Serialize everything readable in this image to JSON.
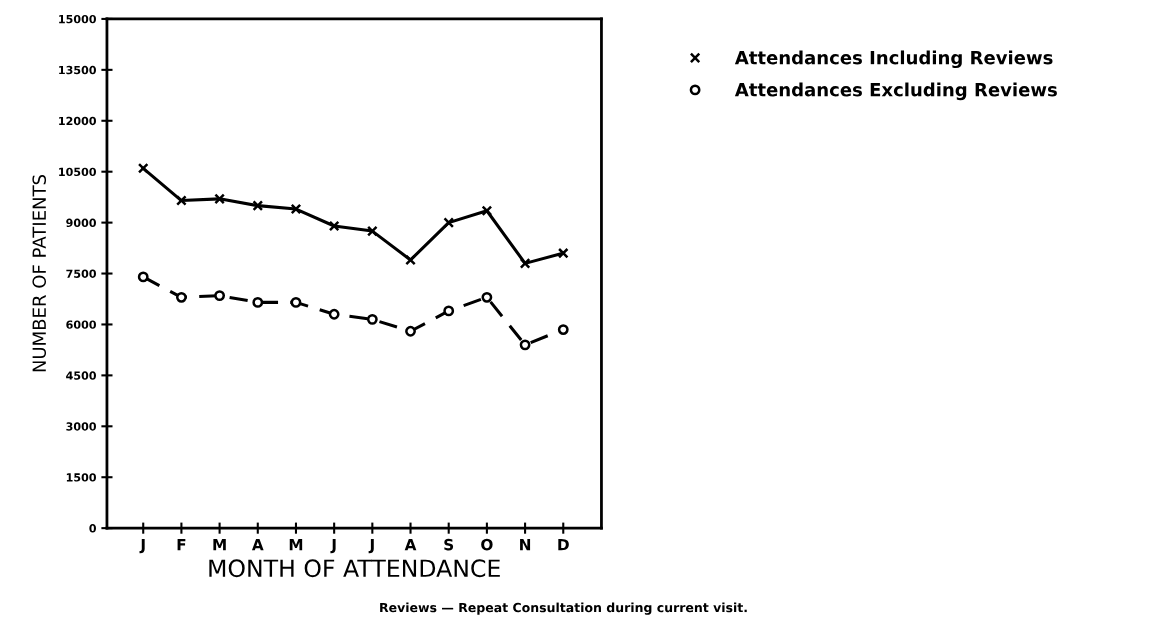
{
  "chart_data": {
    "type": "line",
    "xlabel": "MONTH OF ATTENDANCE",
    "ylabel": "NUMBER OF PATIENTS",
    "categories": [
      "J",
      "F",
      "M",
      "A",
      "M",
      "J",
      "J",
      "A",
      "S",
      "O",
      "N",
      "D"
    ],
    "series": [
      {
        "name": "Attendances Including Reviews",
        "color": "#000000",
        "marker": "cross",
        "line_style": "solid",
        "values": [
          10600,
          9650,
          9700,
          9500,
          9400,
          8900,
          8750,
          7900,
          9000,
          9350,
          7800,
          8100
        ]
      },
      {
        "name": "Attendances Excluding Reviews",
        "color": "#000000",
        "marker": "circle",
        "line_style": "dashed",
        "values": [
          7400,
          6800,
          6850,
          6650,
          6650,
          6300,
          6150,
          5800,
          6400,
          6800,
          5400,
          5850
        ]
      }
    ],
    "ylim": [
      0,
      15000
    ],
    "yticks": [
      0,
      1500,
      3000,
      4500,
      6000,
      7500,
      9000,
      10500,
      12000,
      13500,
      15000
    ],
    "grid": false,
    "legend": "top right",
    "annotations": [
      "Reviews — Repeat Consultation during current visit."
    ]
  }
}
